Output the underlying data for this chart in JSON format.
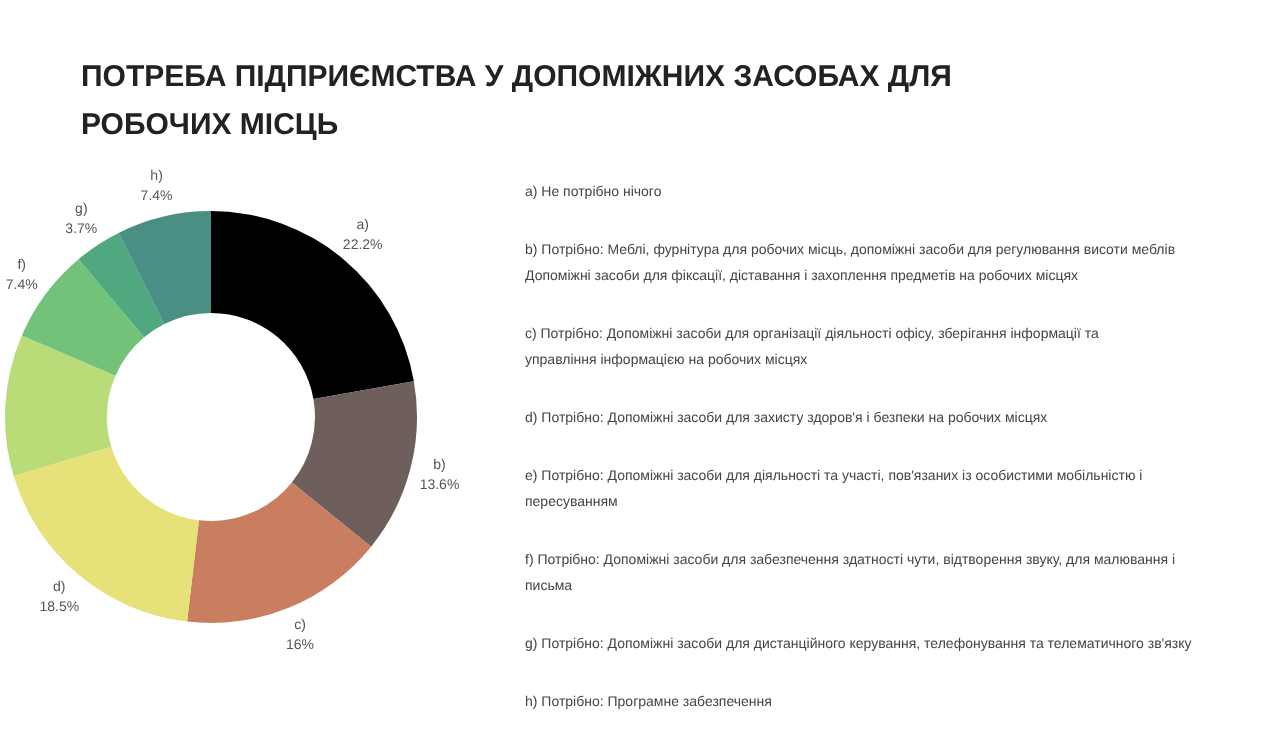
{
  "chart_data": {
    "type": "donut",
    "title": "ПОТРЕБА ПІДПРИЄМСТВА У ДОПОМІЖНИХ ЗАСОБАХ ДЛЯ РОБОЧИХ МІСЦЬ",
    "categories": [
      "a)",
      "b)",
      "c)",
      "d)",
      null,
      "f)",
      "g)",
      "h)"
    ],
    "values": [
      22.2,
      13.6,
      16,
      18.5,
      11.1,
      7.4,
      3.7,
      7.4
    ],
    "value_labels": [
      "22.2%",
      "13.6%",
      "16%",
      "18.5%",
      null,
      "7.4%",
      "3.7%",
      "7.4%"
    ],
    "colors": [
      "#000000",
      "#6f5f5c",
      "#c97e5f",
      "#e6e279",
      "#b9dc78",
      "#72c27a",
      "#4fa87f",
      "#4a8e84"
    ],
    "annotations": [
      "a) Не потрібно нічого",
      "b) Потрібно: Меблі, фурнітура для робочих місць, допоміжні засоби для регулювання висоти меблів Допоміжні засоби для фіксації, діставання і захоплення предметів на робочих місцях",
      "c) Потрібно: Допоміжні засоби для організації діяльності офісу, зберігання інформації та управління інформацією на робочих місцях",
      "d) Потрібно: Допоміжні засоби для захисту здоров'я і безпеки на робочих місцях",
      "e) Потрібно: Допоміжні засоби для діяльності та участі, пов'язаних із особистими мобільністю і пересуванням",
      "f) Потрібно: Допоміжні засоби для забезпечення здатності чути, відтворення звуку, для малювання і письма",
      "g) Потрібно: Допоміжні засоби для дистанційного керування, телефонування та телематичного зв'язку",
      "h) Потрібно: Програмне забезпечення"
    ]
  }
}
